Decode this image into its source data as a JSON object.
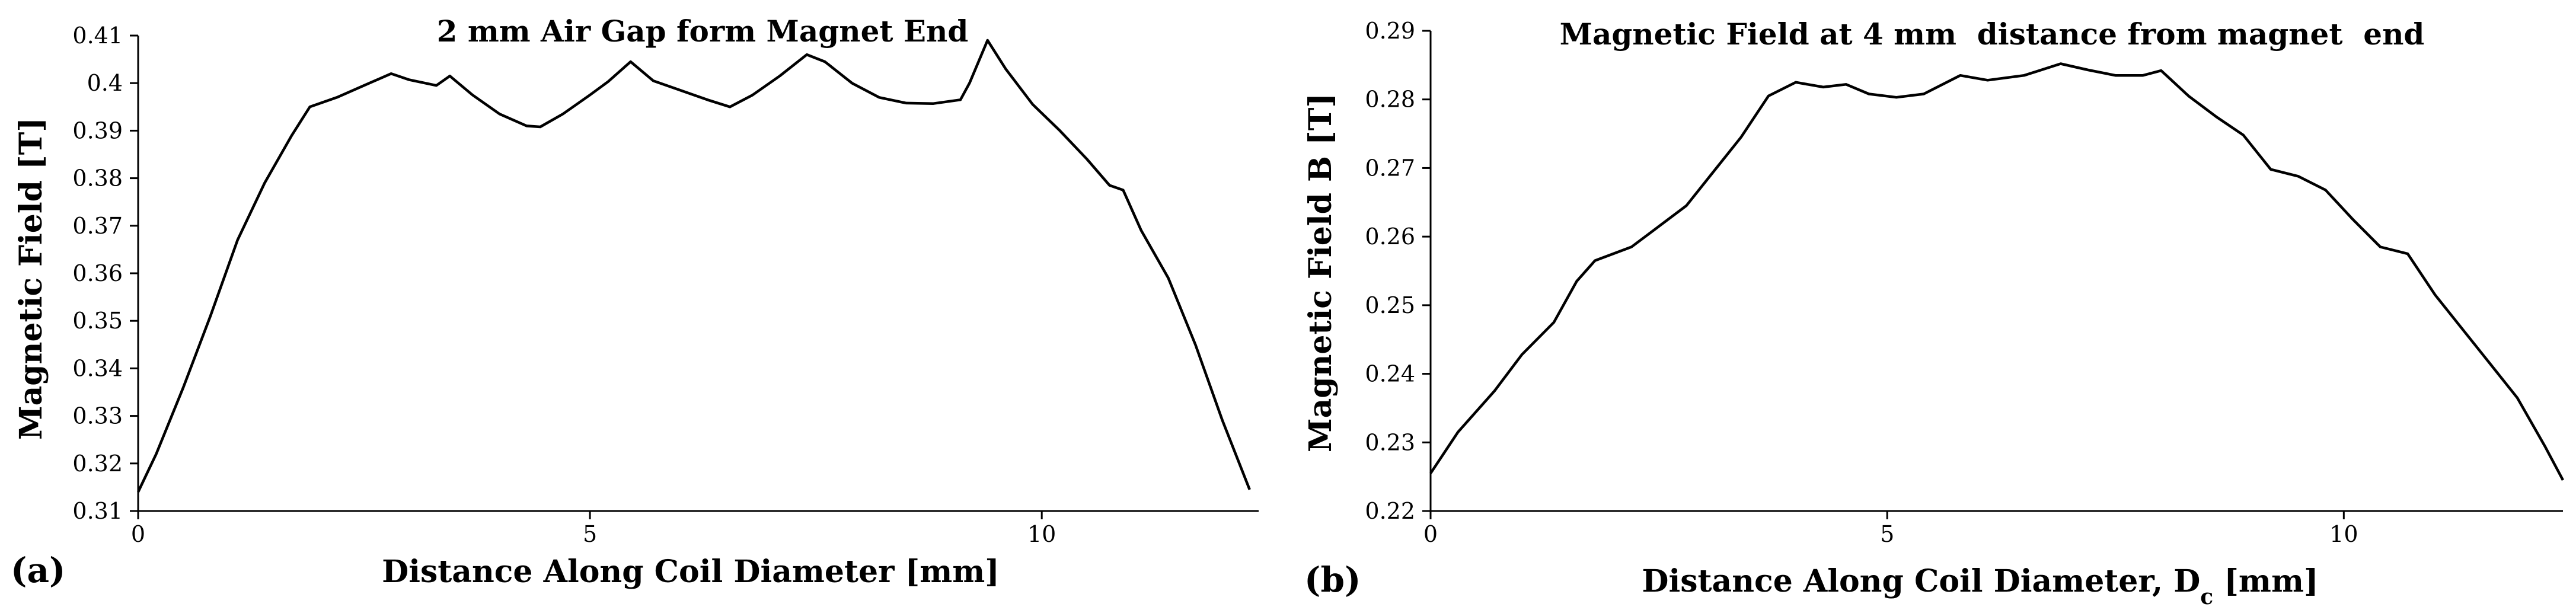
{
  "chart_data": [
    {
      "type": "line",
      "panel_label": "(a)",
      "title": "2 mm Air Gap form Magnet End",
      "xlabel": "Distance Along Coil Diameter [mm]",
      "ylabel": "Magnetic Field [T]",
      "xlim": [
        0,
        12.4
      ],
      "ylim": [
        0.31,
        0.41
      ],
      "xticks": [
        "0",
        "5",
        "10"
      ],
      "xtick_values": [
        0,
        5,
        10
      ],
      "yticks": [
        "0.31",
        "0.32",
        "0.33",
        "0.34",
        "0.35",
        "0.36",
        "0.37",
        "0.38",
        "0.39",
        "0.4",
        "0.41"
      ],
      "ytick_values": [
        0.31,
        0.32,
        0.33,
        0.34,
        0.35,
        0.36,
        0.37,
        0.38,
        0.39,
        0.4,
        0.41
      ],
      "grid": false,
      "series": [
        {
          "x": [
            0,
            0.2,
            0.5,
            0.8,
            1.1,
            1.4,
            1.7,
            1.9,
            2.2,
            2.5,
            2.8,
            3.0,
            3.3,
            3.45,
            3.7,
            4.0,
            4.3,
            4.45,
            4.7,
            5.0,
            5.2,
            5.45,
            5.7,
            6.0,
            6.3,
            6.55,
            6.8,
            7.1,
            7.4,
            7.6,
            7.9,
            8.2,
            8.5,
            8.8,
            9.1,
            9.2,
            9.4,
            9.6,
            9.9,
            10.2,
            10.5,
            10.75,
            10.9,
            11.1,
            11.4,
            11.7,
            12.0,
            12.3
          ],
          "y": [
            0.314,
            0.322,
            0.336,
            0.351,
            0.367,
            0.379,
            0.389,
            0.395,
            0.397,
            0.3995,
            0.402,
            0.4007,
            0.3995,
            0.4015,
            0.3975,
            0.3935,
            0.391,
            0.3908,
            0.3935,
            0.3975,
            0.4003,
            0.4045,
            0.4005,
            0.3985,
            0.3965,
            0.395,
            0.3975,
            0.4015,
            0.406,
            0.4045,
            0.4,
            0.397,
            0.3958,
            0.3957,
            0.3965,
            0.4,
            0.409,
            0.403,
            0.3955,
            0.39,
            0.384,
            0.3785,
            0.3775,
            0.369,
            0.359,
            0.345,
            0.329,
            0.3145
          ]
        }
      ]
    },
    {
      "type": "line",
      "panel_label": "(b)",
      "title": "Magnetic Field at 4 mm  distance from magnet  end",
      "xlabel": "Distance Along Coil Diameter, D",
      "xlabel_subscript": "c",
      "xlabel_unit": " [mm]",
      "ylabel": "Magnetic Field B [T]",
      "xlim": [
        0,
        12.4
      ],
      "ylim": [
        0.22,
        0.29
      ],
      "xticks": [
        "0",
        "5",
        "10"
      ],
      "xtick_values": [
        0,
        5,
        10
      ],
      "yticks": [
        "0.22",
        "0.23",
        "0.24",
        "0.25",
        "0.26",
        "0.27",
        "0.28",
        "0.29"
      ],
      "ytick_values": [
        0.22,
        0.23,
        0.24,
        0.25,
        0.26,
        0.27,
        0.28,
        0.29
      ],
      "grid": false,
      "series": [
        {
          "x": [
            0,
            0.3,
            0.7,
            1.0,
            1.35,
            1.6,
            1.8,
            2.2,
            2.5,
            2.8,
            3.1,
            3.4,
            3.7,
            4.0,
            4.3,
            4.55,
            4.8,
            5.1,
            5.4,
            5.8,
            6.1,
            6.5,
            6.9,
            7.2,
            7.5,
            7.8,
            8.0,
            8.3,
            8.6,
            8.9,
            9.2,
            9.5,
            9.8,
            10.1,
            10.4,
            10.7,
            11.0,
            11.3,
            11.6,
            11.9,
            12.2,
            12.4
          ],
          "y": [
            0.2255,
            0.2315,
            0.2375,
            0.2428,
            0.2475,
            0.2535,
            0.2565,
            0.2585,
            0.2615,
            0.2645,
            0.2695,
            0.2745,
            0.2805,
            0.2825,
            0.2818,
            0.2822,
            0.2808,
            0.2803,
            0.2808,
            0.2835,
            0.2828,
            0.2835,
            0.2852,
            0.2843,
            0.2835,
            0.2835,
            0.2842,
            0.2805,
            0.2775,
            0.2748,
            0.2698,
            0.2688,
            0.2668,
            0.2625,
            0.2585,
            0.2575,
            0.2515,
            0.2465,
            0.2415,
            0.2365,
            0.2295,
            0.2245
          ]
        }
      ]
    }
  ]
}
